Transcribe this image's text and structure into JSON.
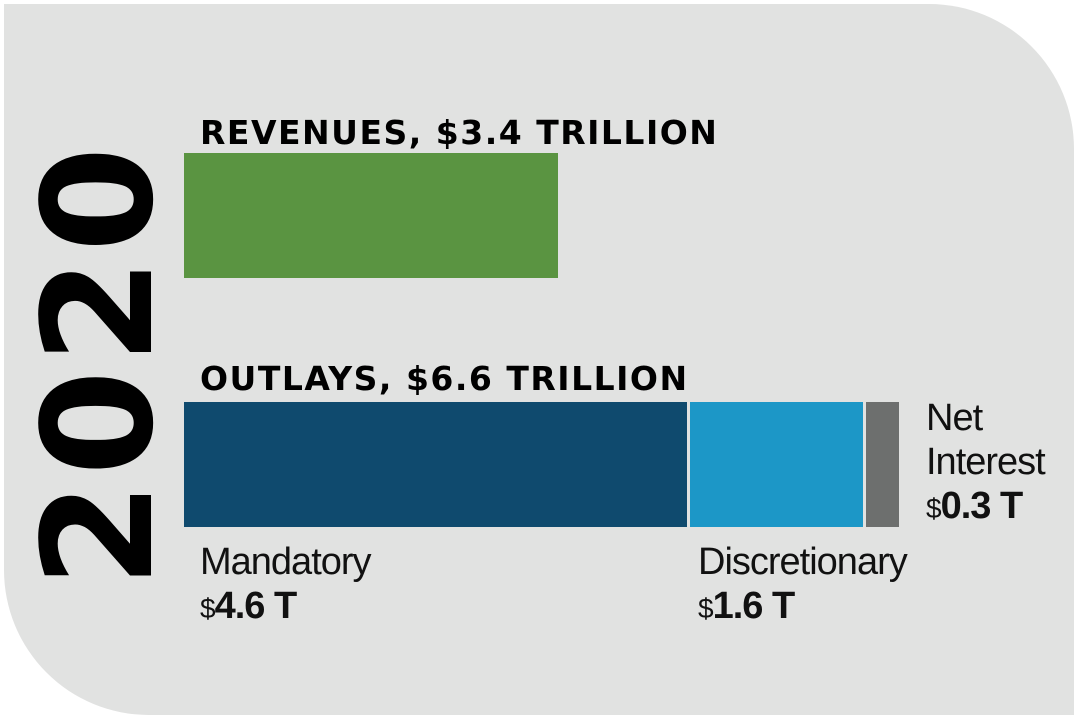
{
  "chart_data": {
    "type": "bar",
    "year": "2020",
    "bars": [
      {
        "title": "REVENUES, $3.4 TRILLION",
        "total": 3.4,
        "segments": [
          {
            "name": "",
            "value": 3.4,
            "color": "#5a9441"
          }
        ]
      },
      {
        "title": "OUTLAYS, $6.6 TRILLION",
        "total": 6.6,
        "segments": [
          {
            "name": "Mandatory",
            "value": 4.6,
            "value_label": "4.6 T",
            "color": "#0f4a6e"
          },
          {
            "name": "Discretionary",
            "value": 1.6,
            "value_label": "1.6 T",
            "color": "#1c97c7"
          },
          {
            "name": "Net Interest",
            "value": 0.3,
            "value_label": "0.3 T",
            "color": "#6d6f6e"
          }
        ]
      }
    ],
    "currency_symbol": "$",
    "unit": "trillion dollars"
  },
  "colors": {
    "background": "#e1e2e1",
    "revenues": "#5a9441",
    "mandatory": "#0f4a6e",
    "discretionary": "#1c97c7",
    "net_interest": "#6d6f6e"
  }
}
